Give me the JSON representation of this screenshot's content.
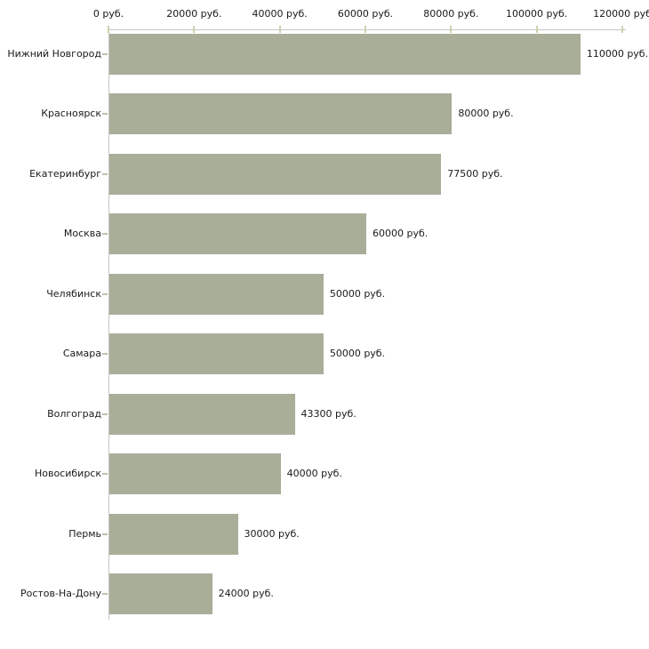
{
  "chart_data": {
    "type": "bar",
    "orientation": "horizontal",
    "title": "",
    "xlabel": "",
    "ylabel": "",
    "grid": false,
    "legend": false,
    "categories": [
      "Нижний Новгород",
      "Красноярск",
      "Екатеринбург",
      "Москва",
      "Челябинск",
      "Самара",
      "Волгоград",
      "Новосибирск",
      "Пермь",
      "Ростов-На-Дону"
    ],
    "values": [
      110000,
      80000,
      77500,
      60000,
      50000,
      50000,
      43300,
      40000,
      30000,
      24000
    ],
    "value_labels": [
      "110000 руб.",
      "80000 руб.",
      "77500 руб.",
      "60000 руб.",
      "50000 руб.",
      "50000 руб.",
      "43300 руб.",
      "40000 руб.",
      "30000 руб.",
      "24000 руб."
    ],
    "x_axis": {
      "position": "top",
      "min": 0,
      "max": 120000,
      "tick_values": [
        0,
        20000,
        40000,
        60000,
        80000,
        100000,
        120000
      ],
      "tick_labels": [
        "0 руб.",
        "20000 руб.",
        "40000 руб.",
        "60000 руб.",
        "80000 руб.",
        "100000 руб.",
        "120000 руб"
      ]
    },
    "colors": {
      "bar": "#a9ae98",
      "axis_line": "#c6c6c6",
      "x_tick_mark": "#ccd1ab",
      "y_tick_mark": "#bcc0a8",
      "text": "#1a1a1a",
      "background": "#ffffff"
    }
  }
}
